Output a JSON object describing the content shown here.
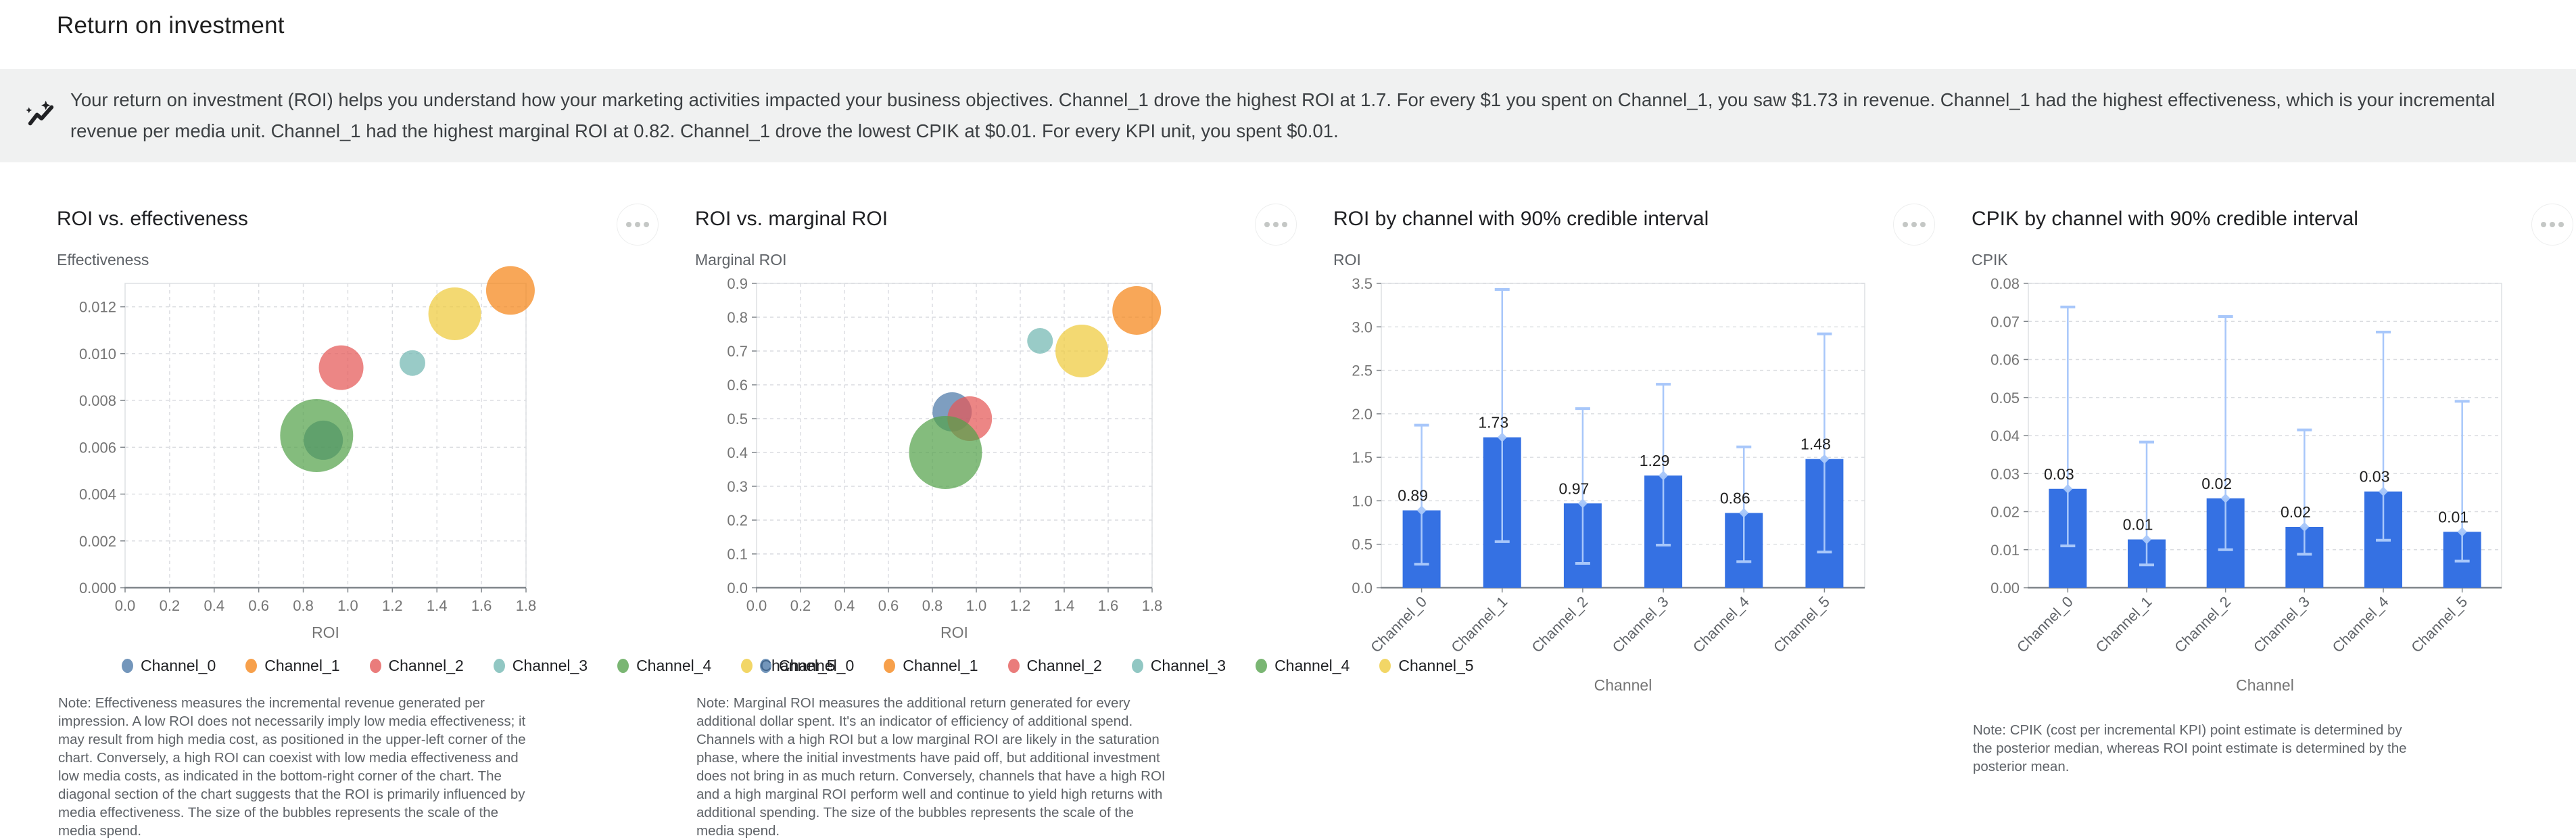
{
  "page": {
    "title": "Return on investment"
  },
  "insight": {
    "icon": "insights-sparkle-icon",
    "text": "Your return on investment (ROI) helps you understand how your marketing activities impacted your business objectives. Channel_1 drove the highest ROI at 1.7. For every $1 you spent on Channel_1, you saw $1.73 in revenue. Channel_1 had the highest effectiveness, which is your incremental revenue per media unit. Channel_1 had the highest marginal ROI at 0.82. Channel_1 drove the lowest CPIK at $0.01. For every KPI unit, you spent $0.01."
  },
  "channels": [
    "Channel_0",
    "Channel_1",
    "Channel_2",
    "Channel_3",
    "Channel_4",
    "Channel_5"
  ],
  "palette": [
    "#4C78A8",
    "#F58518",
    "#E45756",
    "#72B7B2",
    "#54A24B",
    "#EECA3B"
  ],
  "bar_style": {
    "bar_color": "#3571E3",
    "ci_color": "#A8C7FA"
  },
  "chart_data": [
    {
      "type": "scatter",
      "title": "ROI vs. effectiveness",
      "xlabel": "ROI",
      "ylabel": "Effectiveness",
      "xlim": [
        0,
        1.8
      ],
      "ylim": [
        0,
        0.013
      ],
      "xticks": [
        0,
        0.2,
        0.4,
        0.6,
        0.8,
        1.0,
        1.2,
        1.4,
        1.6,
        1.8
      ],
      "xtick_labels": [
        "0.0",
        "0.2",
        "0.4",
        "0.6",
        "0.8",
        "1.0",
        "1.2",
        "1.4",
        "1.6",
        "1.8"
      ],
      "yticks": [
        0,
        0.002,
        0.004,
        0.006,
        0.008,
        0.01,
        0.012
      ],
      "ytick_labels": [
        "0.000",
        "0.002",
        "0.004",
        "0.006",
        "0.008",
        "0.010",
        "0.012"
      ],
      "grid": true,
      "legend_position": "bottom",
      "points": [
        {
          "channel": "Channel_0",
          "x": 0.89,
          "y": 0.0063,
          "r": 29
        },
        {
          "channel": "Channel_1",
          "x": 1.73,
          "y": 0.0127,
          "r": 36
        },
        {
          "channel": "Channel_2",
          "x": 0.97,
          "y": 0.0094,
          "r": 33
        },
        {
          "channel": "Channel_3",
          "x": 1.29,
          "y": 0.0096,
          "r": 19
        },
        {
          "channel": "Channel_4",
          "x": 0.86,
          "y": 0.0065,
          "r": 54
        },
        {
          "channel": "Channel_5",
          "x": 1.48,
          "y": 0.0117,
          "r": 39
        }
      ],
      "note": "Note: Effectiveness measures the incremental revenue generated per impression. A low ROI does not necessarily imply low media effectiveness; it may result from high media cost, as positioned in the upper-left corner of the chart. Conversely, a high ROI can coexist with low media effectiveness and low media costs, as indicated in the bottom-right corner of the chart. The diagonal section of the chart suggests that the ROI is primarily influenced by media effectiveness. The size of the bubbles represents the scale of the media spend."
    },
    {
      "type": "scatter",
      "title": "ROI vs. marginal ROI",
      "xlabel": "ROI",
      "ylabel": "Marginal ROI",
      "xlim": [
        0,
        1.8
      ],
      "ylim": [
        0,
        0.9
      ],
      "xticks": [
        0,
        0.2,
        0.4,
        0.6,
        0.8,
        1.0,
        1.2,
        1.4,
        1.6,
        1.8
      ],
      "xtick_labels": [
        "0.0",
        "0.2",
        "0.4",
        "0.6",
        "0.8",
        "1.0",
        "1.2",
        "1.4",
        "1.6",
        "1.8"
      ],
      "yticks": [
        0,
        0.1,
        0.2,
        0.3,
        0.4,
        0.5,
        0.6,
        0.7,
        0.8,
        0.9
      ],
      "ytick_labels": [
        "0.0",
        "0.1",
        "0.2",
        "0.3",
        "0.4",
        "0.5",
        "0.6",
        "0.7",
        "0.8",
        "0.9"
      ],
      "grid": true,
      "legend_position": "bottom",
      "points": [
        {
          "channel": "Channel_0",
          "x": 0.89,
          "y": 0.52,
          "r": 29
        },
        {
          "channel": "Channel_1",
          "x": 1.73,
          "y": 0.82,
          "r": 36
        },
        {
          "channel": "Channel_2",
          "x": 0.97,
          "y": 0.5,
          "r": 33
        },
        {
          "channel": "Channel_3",
          "x": 1.29,
          "y": 0.73,
          "r": 19
        },
        {
          "channel": "Channel_4",
          "x": 0.86,
          "y": 0.4,
          "r": 54
        },
        {
          "channel": "Channel_5",
          "x": 1.48,
          "y": 0.7,
          "r": 39
        }
      ],
      "note": "Note: Marginal ROI measures the additional return generated for every additional dollar spent. It's an indicator of efficiency of additional spend. Channels with a high ROI but a low marginal ROI are likely in the saturation phase, where the initial investments have paid off, but additional investment does not bring in as much return. Conversely, channels that have a high ROI and a high marginal ROI perform well and continue to yield high returns with additional spending. The size of the bubbles represents the scale of the media spend."
    },
    {
      "type": "bar",
      "title": "ROI by channel with 90% credible interval",
      "xlabel": "Channel",
      "ylabel": "ROI",
      "ylim": [
        0,
        3.5
      ],
      "yticks": [
        0,
        0.5,
        1.0,
        1.5,
        2.0,
        2.5,
        3.0,
        3.5
      ],
      "ytick_labels": [
        "0.0",
        "0.5",
        "1.0",
        "1.5",
        "2.0",
        "2.5",
        "3.0",
        "3.5"
      ],
      "grid": true,
      "categories": [
        "Channel_0",
        "Channel_1",
        "Channel_2",
        "Channel_3",
        "Channel_4",
        "Channel_5"
      ],
      "values": [
        0.89,
        1.73,
        0.97,
        1.29,
        0.86,
        1.48
      ],
      "value_labels": [
        "0.89",
        "1.73",
        "0.97",
        "1.29",
        "0.86",
        "1.48"
      ],
      "ci_lower": [
        0.27,
        0.53,
        0.28,
        0.49,
        0.3,
        0.41
      ],
      "ci_upper": [
        1.87,
        3.43,
        2.06,
        2.34,
        1.62,
        2.92
      ]
    },
    {
      "type": "bar",
      "title": "CPIK by channel with 90% credible interval",
      "xlabel": "Channel",
      "ylabel": "CPIK",
      "ylim": [
        0,
        0.08
      ],
      "yticks": [
        0,
        0.01,
        0.02,
        0.03,
        0.04,
        0.05,
        0.06,
        0.07,
        0.08
      ],
      "ytick_labels": [
        "0.00",
        "0.01",
        "0.02",
        "0.03",
        "0.04",
        "0.05",
        "0.06",
        "0.07",
        "0.08"
      ],
      "grid": true,
      "categories": [
        "Channel_0",
        "Channel_1",
        "Channel_2",
        "Channel_3",
        "Channel_4",
        "Channel_5"
      ],
      "values": [
        0.026,
        0.0127,
        0.0235,
        0.016,
        0.0253,
        0.0147
      ],
      "value_labels": [
        "0.03",
        "0.01",
        "0.02",
        "0.02",
        "0.03",
        "0.01"
      ],
      "ci_lower": [
        0.011,
        0.006,
        0.01,
        0.0088,
        0.0125,
        0.007
      ],
      "ci_upper": [
        0.0738,
        0.0383,
        0.0713,
        0.0415,
        0.0672,
        0.049
      ],
      "note": "Note: CPIK (cost per incremental KPI) point estimate is determined by the posterior median, whereas ROI point estimate is determined by the posterior mean."
    }
  ]
}
